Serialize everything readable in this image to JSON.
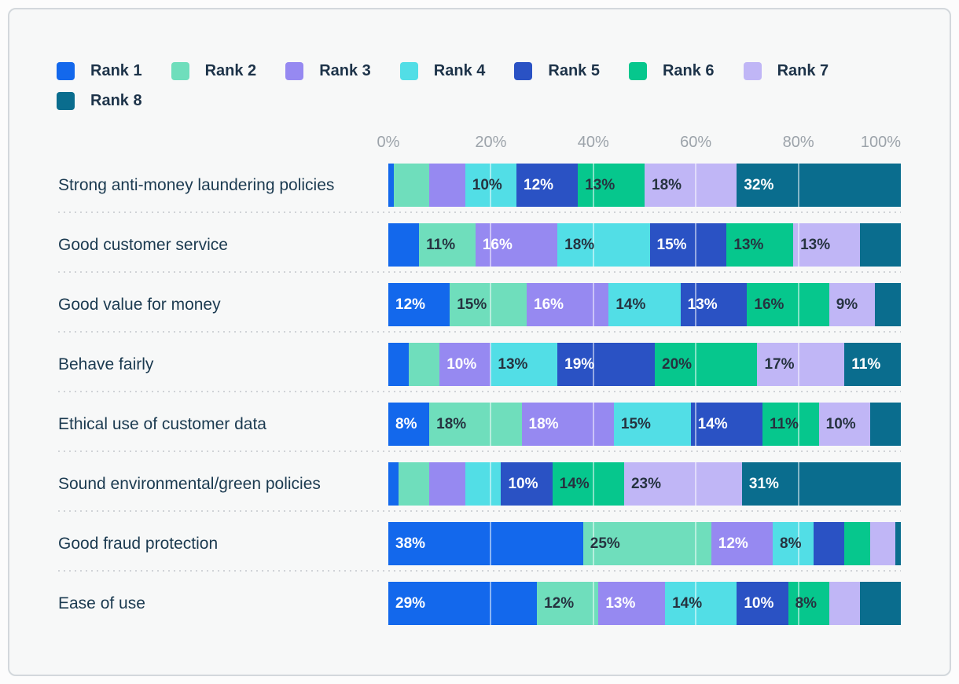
{
  "legend": {
    "items": [
      {
        "label": "Rank 1",
        "color": "#1368EC"
      },
      {
        "label": "Rank 2",
        "color": "#6FDEBC"
      },
      {
        "label": "Rank 3",
        "color": "#9689F1"
      },
      {
        "label": "Rank 4",
        "color": "#52DEE6"
      },
      {
        "label": "Rank 5",
        "color": "#2A52C4"
      },
      {
        "label": "Rank 6",
        "color": "#06C78D"
      },
      {
        "label": "Rank 7",
        "color": "#C0B6F6"
      },
      {
        "label": "Rank 8",
        "color": "#0A6D8E"
      }
    ]
  },
  "axis": {
    "ticks": [
      "0%",
      "20%",
      "40%",
      "60%",
      "80%",
      "100%"
    ]
  },
  "chart_data": {
    "type": "bar",
    "stacked": true,
    "orientation": "horizontal",
    "unit": "percent",
    "x_range": [
      0,
      100
    ],
    "x_ticks_percent": [
      0,
      20,
      40,
      60,
      80,
      100
    ],
    "gridlines_percent": [
      20,
      40,
      60,
      80
    ],
    "legend_position": "top",
    "categories": [
      "Strong anti-money laundering policies",
      "Good customer service",
      "Good value for money",
      "Behave fairly",
      "Ethical use of customer data",
      "Sound environmental/green policies",
      "Good fraud protection",
      "Ease of use"
    ],
    "series": [
      {
        "name": "Rank 1",
        "color": "#1368EC",
        "label_color": "#FFFFFF",
        "values": [
          1,
          6,
          12,
          4,
          8,
          2,
          38,
          29
        ],
        "labels": [
          "",
          "",
          "12%",
          "",
          "8%",
          "",
          "38%",
          "29%"
        ]
      },
      {
        "name": "Rank 2",
        "color": "#6FDEBC",
        "label_color": "#263340",
        "values": [
          7,
          11,
          15,
          6,
          18,
          6,
          25,
          12
        ],
        "labels": [
          "",
          "11%",
          "15%",
          "",
          "18%",
          "",
          "25%",
          "12%"
        ]
      },
      {
        "name": "Rank 3",
        "color": "#9689F1",
        "label_color": "#FFFFFF",
        "values": [
          7,
          16,
          16,
          10,
          18,
          7,
          12,
          13
        ],
        "labels": [
          "",
          "16%",
          "16%",
          "10%",
          "18%",
          "",
          "12%",
          "13%"
        ]
      },
      {
        "name": "Rank 4",
        "color": "#52DEE6",
        "label_color": "#263340",
        "values": [
          10,
          18,
          14,
          13,
          15,
          7,
          8,
          14
        ],
        "labels": [
          "10%",
          "18%",
          "14%",
          "13%",
          "15%",
          "",
          "8%",
          "14%"
        ]
      },
      {
        "name": "Rank 5",
        "color": "#2A52C4",
        "label_color": "#FFFFFF",
        "values": [
          12,
          15,
          13,
          19,
          14,
          10,
          6,
          10
        ],
        "labels": [
          "12%",
          "15%",
          "13%",
          "19%",
          "14%",
          "10%",
          "",
          "10%"
        ]
      },
      {
        "name": "Rank 6",
        "color": "#06C78D",
        "label_color": "#263340",
        "values": [
          13,
          13,
          16,
          20,
          11,
          14,
          5,
          8
        ],
        "labels": [
          "13%",
          "13%",
          "16%",
          "20%",
          "11%",
          "14%",
          "",
          "8%"
        ]
      },
      {
        "name": "Rank 7",
        "color": "#C0B6F6",
        "label_color": "#263340",
        "values": [
          18,
          13,
          9,
          17,
          10,
          23,
          5,
          6
        ],
        "labels": [
          "18%",
          "13%",
          "9%",
          "17%",
          "10%",
          "23%",
          "",
          ""
        ]
      },
      {
        "name": "Rank 8",
        "color": "#0A6D8E",
        "label_color": "#FFFFFF",
        "values": [
          32,
          8,
          5,
          11,
          6,
          31,
          1,
          8
        ],
        "labels": [
          "32%",
          "",
          "",
          "11%",
          "",
          "31%",
          "",
          ""
        ]
      }
    ]
  },
  "style": {
    "card_bg": "#f7f8f8",
    "card_border": "#d3d8dc",
    "axis_text": "#9ca3aa",
    "category_text": "#1b3a50",
    "legend_text": "#1d3349"
  }
}
